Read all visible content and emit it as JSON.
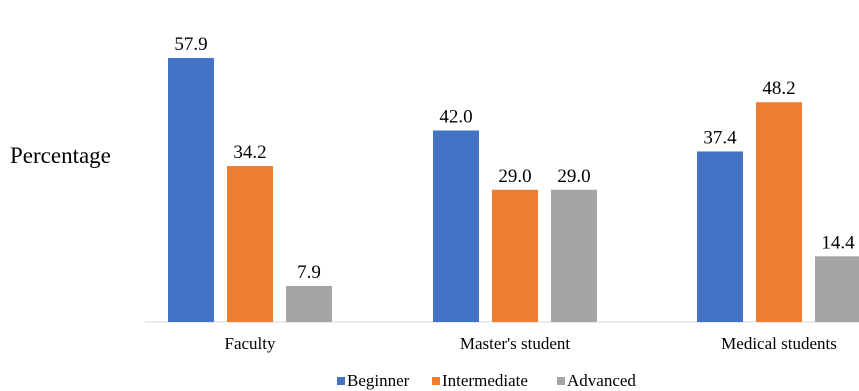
{
  "chart_data": {
    "type": "bar",
    "ylabel": "Percentage",
    "categories": [
      "Faculty",
      "Master's student",
      "Medical students"
    ],
    "series": [
      {
        "name": "Beginner",
        "color": "#4472C4",
        "values": [
          57.9,
          42.0,
          37.4
        ],
        "labels": [
          "57.9",
          "42.0",
          "37.4"
        ]
      },
      {
        "name": "Intermediate",
        "color": "#ED7D31",
        "values": [
          34.2,
          29.0,
          48.2
        ],
        "labels": [
          "34.2",
          "29.0",
          "48.2"
        ]
      },
      {
        "name": "Advanced",
        "color": "#A5A5A5",
        "values": [
          7.9,
          29.0,
          14.4
        ],
        "labels": [
          "7.9",
          "29.0",
          "14.4"
        ]
      }
    ],
    "ylim": [
      0,
      60
    ],
    "grid": false,
    "legend": "bottom"
  }
}
